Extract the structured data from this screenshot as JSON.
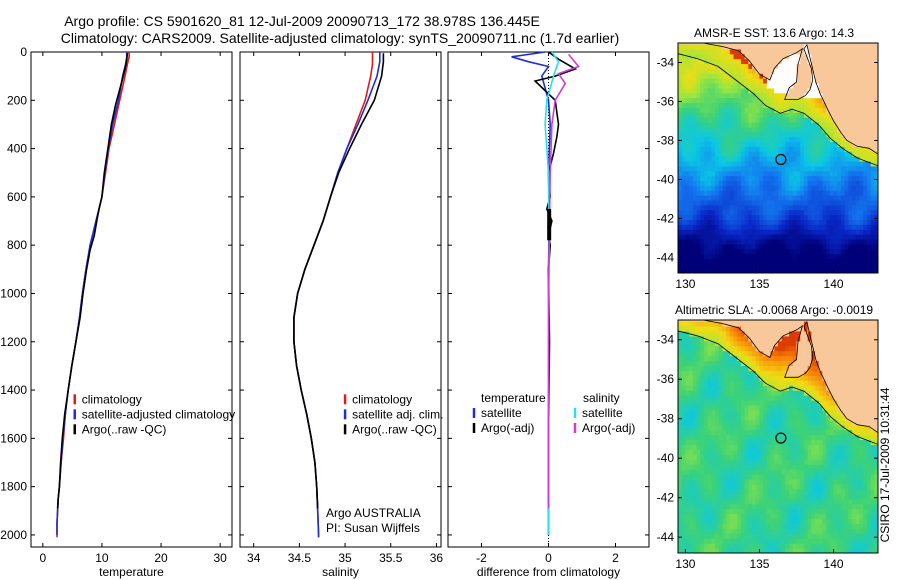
{
  "header": {
    "title_line1": "Argo profile: CS 5901620_81 12-Jul-2009 20090713_172 38.978S 136.445E",
    "title_line2": "Climatology: CARS2009. Satellite-adjusted climatology: synTS_20090711.nc (1.7d earlier)"
  },
  "colors": {
    "climatology": "#dd1c1c",
    "satellite": "#1f2fd6",
    "argo": "#000000",
    "satellite_salinity": "#2ae0e8",
    "argo_salinity": "#d23cd2",
    "land": "#f9c89a"
  },
  "credit": "CSIRO 17-Jul-2009 10:31:44",
  "chart_data": [
    {
      "id": "temperature",
      "type": "line",
      "xlabel": "temperature",
      "ylabel": "",
      "xlim": [
        -2,
        32
      ],
      "ylim": [
        2050,
        0
      ],
      "xticks": [
        0,
        10,
        20,
        30
      ],
      "yticks": [
        0,
        200,
        400,
        600,
        800,
        1000,
        1200,
        1400,
        1600,
        1800,
        2000
      ],
      "legend": {
        "placement": "lower-middle",
        "entries": [
          "climatology",
          "satellite-adjusted climatology",
          "Argo(..raw -QC)"
        ]
      },
      "series": [
        {
          "name": "climatology",
          "color_key": "climatology",
          "x": [
            14.6,
            14.6,
            14.3,
            13.9,
            13.0,
            12.1,
            11.2,
            10.6,
            10.0,
            9.5,
            9.0,
            8.5,
            8.0,
            7.3,
            6.7,
            6.2,
            5.6,
            4.9,
            4.3,
            3.8,
            3.5,
            3.1,
            2.8,
            2.6,
            2.5,
            2.4,
            2.4,
            2.4
          ],
          "y": [
            0,
            20,
            50,
            100,
            200,
            300,
            400,
            500,
            600,
            650,
            700,
            750,
            800,
            900,
            1000,
            1100,
            1200,
            1300,
            1400,
            1500,
            1600,
            1700,
            1800,
            1850,
            1900,
            1950,
            2000,
            2010
          ]
        },
        {
          "name": "satellite-adjusted climatology",
          "color_key": "satellite",
          "x": [
            14.2,
            14.2,
            14.0,
            13.5,
            12.8,
            11.8,
            11.1,
            10.5,
            10.0,
            9.5,
            9.0,
            8.5,
            8.0,
            7.3,
            6.7,
            6.2,
            5.6,
            4.9,
            4.3,
            3.8,
            3.4,
            3.1,
            2.8,
            2.6,
            2.5,
            2.4,
            2.4
          ],
          "y": [
            0,
            20,
            50,
            100,
            200,
            300,
            400,
            500,
            600,
            650,
            700,
            750,
            800,
            900,
            1000,
            1100,
            1200,
            1300,
            1400,
            1500,
            1600,
            1700,
            1800,
            1850,
            1900,
            1950,
            2000
          ]
        },
        {
          "name": "Argo(..raw -QC)",
          "color_key": "argo",
          "x": [
            14.3,
            14.2,
            14.0,
            13.4,
            12.3,
            11.6,
            11.0,
            10.4,
            10.0,
            9.6,
            9.2,
            8.7,
            8.0,
            7.4,
            6.8,
            6.3,
            5.6,
            4.9,
            4.3,
            3.7,
            3.3,
            3.0,
            2.8,
            2.6,
            2.5
          ],
          "y": [
            5,
            30,
            60,
            120,
            220,
            300,
            400,
            500,
            600,
            640,
            690,
            760,
            820,
            900,
            1000,
            1100,
            1200,
            1300,
            1400,
            1500,
            1600,
            1700,
            1800,
            1850,
            1890
          ]
        }
      ]
    },
    {
      "id": "salinity",
      "type": "line",
      "xlabel": "salinity",
      "ylabel": "",
      "xlim": [
        33.85,
        36.05
      ],
      "ylim": [
        2050,
        0
      ],
      "xticks": [
        34,
        34.5,
        35,
        35.5,
        36
      ],
      "xtick_labels": [
        "34",
        "34.5",
        "35",
        "35.5",
        "36"
      ],
      "legend": {
        "placement": "lower-right",
        "entries": [
          "climatology",
          "satellite adj. clim.",
          "Argo(..raw -QC)"
        ]
      },
      "annotations": [
        "Argo AUSTRALIA",
        "PI: Susan Wijffels"
      ],
      "series": [
        {
          "name": "climatology",
          "color_key": "climatology",
          "x": [
            35.3,
            35.3,
            35.28,
            35.22,
            35.12,
            35.02,
            34.92,
            34.84,
            34.76,
            34.66,
            34.56,
            34.48,
            34.44,
            34.44,
            34.47,
            34.52,
            34.58,
            34.63,
            34.67,
            34.69,
            34.7,
            34.71,
            34.71
          ],
          "y": [
            0,
            50,
            100,
            200,
            300,
            400,
            500,
            600,
            700,
            800,
            900,
            1000,
            1100,
            1200,
            1300,
            1400,
            1500,
            1600,
            1700,
            1800,
            1900,
            2000,
            2010
          ]
        },
        {
          "name": "satellite adj. clim.",
          "color_key": "satellite",
          "x": [
            35.38,
            35.38,
            35.35,
            35.25,
            35.14,
            35.02,
            34.92,
            34.84,
            34.76,
            34.66,
            34.56,
            34.48,
            34.44,
            34.44,
            34.47,
            34.52,
            34.58,
            34.63,
            34.67,
            34.69,
            34.7,
            34.71,
            34.71
          ],
          "y": [
            0,
            40,
            100,
            200,
            300,
            400,
            500,
            600,
            700,
            800,
            900,
            1000,
            1100,
            1200,
            1300,
            1400,
            1500,
            1600,
            1700,
            1800,
            1900,
            2000,
            2010
          ]
        },
        {
          "name": "Argo(..raw -QC)",
          "color_key": "argo",
          "x": [
            35.42,
            35.42,
            35.4,
            35.32,
            35.18,
            35.05,
            34.93,
            34.84,
            34.76,
            34.66,
            34.56,
            34.48,
            34.44,
            34.44,
            34.47,
            34.52,
            34.58,
            34.63,
            34.67,
            34.69,
            34.7
          ],
          "y": [
            5,
            40,
            100,
            200,
            300,
            400,
            500,
            600,
            700,
            800,
            900,
            1000,
            1100,
            1200,
            1300,
            1400,
            1500,
            1600,
            1700,
            1800,
            1890
          ]
        }
      ]
    },
    {
      "id": "difference",
      "type": "line",
      "xlabel": "difference from climatology",
      "ylabel": "",
      "xlim": [
        -3,
        3
      ],
      "ylim": [
        2050,
        0
      ],
      "xticks": [
        -2,
        0,
        2
      ],
      "legend": {
        "placement": "lower-middle",
        "headers": [
          "temperature",
          "salinity"
        ],
        "entries": [
          "satellite",
          "Argo(-adj)",
          "satellite",
          "Argo(-adj)"
        ]
      },
      "series": [
        {
          "name": "satellite",
          "group": "temperature",
          "color_key": "satellite",
          "x": [
            -0.1,
            -1.1,
            -0.6,
            0.0,
            -0.2,
            0.0,
            0.05,
            0.0,
            0.02,
            0.0,
            0.01,
            0.0,
            0.0
          ],
          "y": [
            0,
            20,
            40,
            60,
            100,
            200,
            300,
            500,
            700,
            900,
            1200,
            1600,
            2000
          ]
        },
        {
          "name": "Argo(-adj)",
          "group": "temperature",
          "color_key": "argo",
          "x": [
            0.0,
            0.3,
            0.8,
            0.2,
            -0.4,
            0.2,
            0.3,
            0.25,
            0.15,
            0.0,
            0.05,
            -0.05,
            0.1,
            0.0,
            0.05,
            0.0,
            0.03,
            0.0,
            0.0
          ],
          "y": [
            0,
            30,
            70,
            100,
            120,
            200,
            300,
            350,
            420,
            500,
            600,
            650,
            700,
            760,
            800,
            900,
            1200,
            1600,
            1890
          ]
        },
        {
          "name": "satellite",
          "group": "salinity",
          "color_key": "satellite_salinity",
          "x": [
            0.1,
            0.3,
            0.15,
            -0.05,
            -0.1,
            0.0,
            0.02,
            0.0,
            0.0
          ],
          "y": [
            0,
            40,
            100,
            200,
            300,
            500,
            800,
            1200,
            2000
          ]
        },
        {
          "name": "Argo(-adj)",
          "group": "salinity",
          "color_key": "argo_salinity",
          "x": [
            0.6,
            0.9,
            0.3,
            0.5,
            0.2,
            0.1,
            0.05,
            0.0,
            0.0
          ],
          "y": [
            10,
            60,
            90,
            130,
            200,
            300,
            500,
            1000,
            1890
          ]
        }
      ]
    },
    {
      "id": "sst_map",
      "type": "heatmap",
      "title": "AMSR-E SST: 13.6 Argo: 14.3",
      "xlim": [
        129.5,
        143.0
      ],
      "ylim": [
        -44.8,
        -33.0
      ],
      "xticks": [
        130,
        135,
        140
      ],
      "yticks": [
        -34,
        -36,
        -38,
        -40,
        -42,
        -44
      ],
      "marker": {
        "lon": 136.445,
        "lat": -38.978
      }
    },
    {
      "id": "sla_map",
      "type": "heatmap",
      "title": "Altimetric SLA: -0.0068 Argo: -0.0019",
      "xlim": [
        129.5,
        143.0
      ],
      "ylim": [
        -44.8,
        -33.0
      ],
      "xticks": [
        130,
        135,
        140
      ],
      "yticks": [
        -34,
        -36,
        -38,
        -40,
        -42,
        -44
      ],
      "marker": {
        "lon": 136.445,
        "lat": -38.978
      }
    }
  ]
}
